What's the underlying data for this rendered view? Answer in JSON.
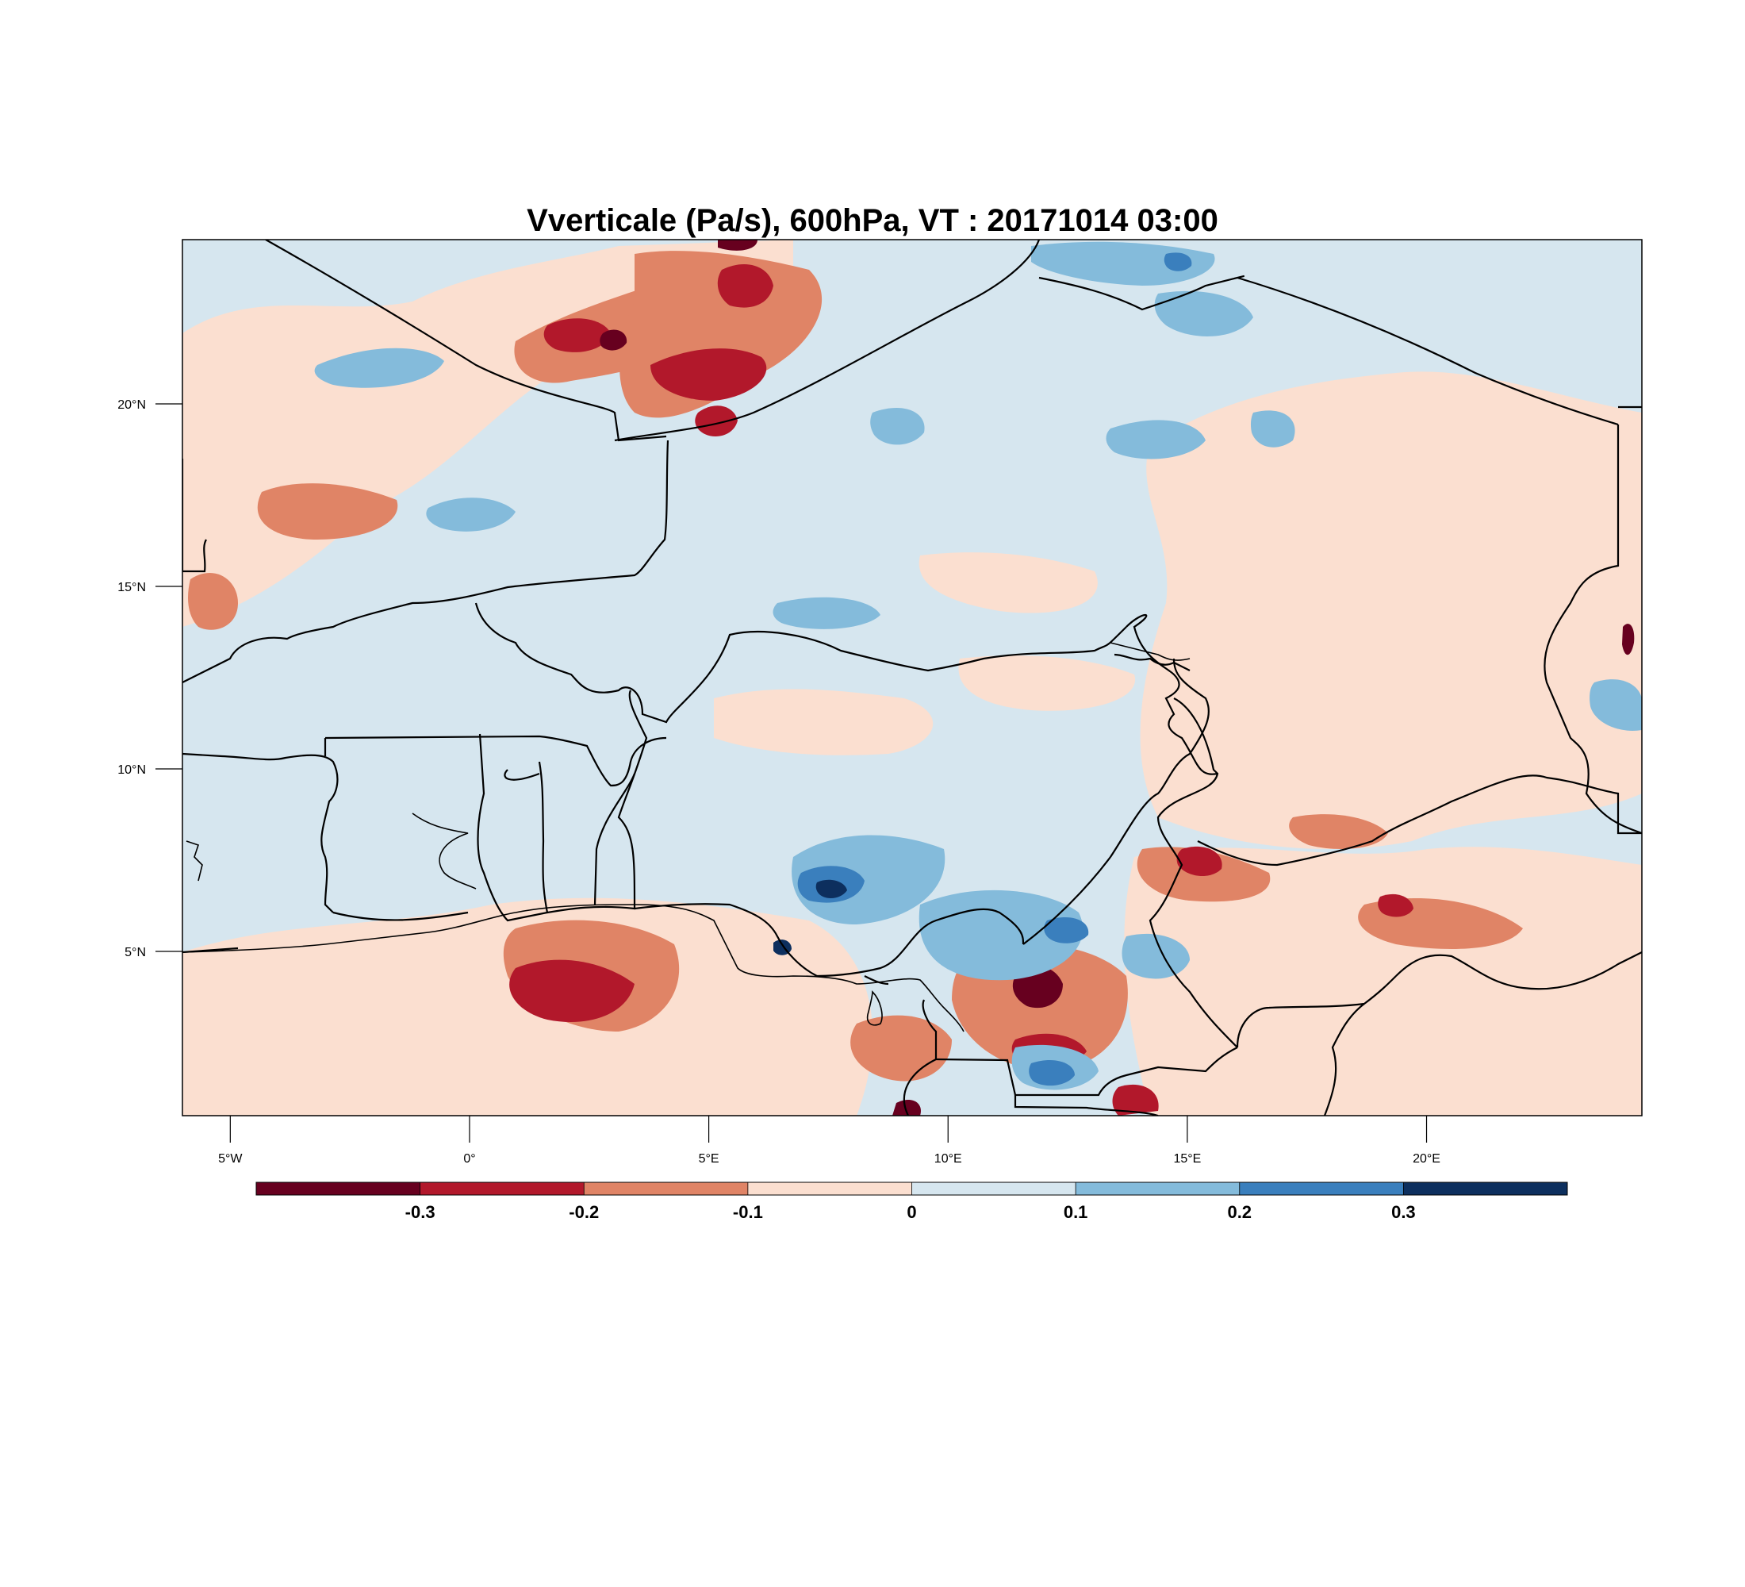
{
  "title": "Vverticale (Pa/s), 600hPa, VT : 20171014  03:00",
  "map": {
    "lon_range": [
      -6.0,
      24.5
    ],
    "lat_range": [
      0.5,
      24.5
    ],
    "lon_ticks": [
      {
        "value": -5,
        "label": "5°W"
      },
      {
        "value": 0,
        "label": "0°"
      },
      {
        "value": 5,
        "label": "5°E"
      },
      {
        "value": 10,
        "label": "10°E"
      },
      {
        "value": 15,
        "label": "15°E"
      },
      {
        "value": 20,
        "label": "20°E"
      }
    ],
    "lat_ticks": [
      {
        "value": 20,
        "label": "20°N"
      },
      {
        "value": 15,
        "label": "15°N"
      },
      {
        "value": 10,
        "label": "10°N"
      },
      {
        "value": 5,
        "label": "5°N"
      }
    ],
    "background_field_color": "#dbe9f2",
    "border_color": "#000000"
  },
  "colorbar": {
    "colors": [
      "#67001f",
      "#b2182b",
      "#d6604d",
      "#f4a582",
      "#fddbc7",
      "#d1e5f0",
      "#92c5de",
      "#4393c3",
      "#2166ac",
      "#053061"
    ],
    "boundaries": [
      -0.3,
      -0.2,
      -0.1,
      0,
      0.1,
      0.2,
      0.3
    ],
    "labels": [
      "-0.3",
      "-0.2",
      "-0.1",
      "0",
      "0.1",
      "0.2",
      "0.3"
    ],
    "levels": [
      {
        "range": [
          -0.4,
          -0.3
        ],
        "color": "#67001f"
      },
      {
        "range": [
          -0.3,
          -0.2
        ],
        "color": "#b2182b"
      },
      {
        "range": [
          -0.2,
          -0.1
        ],
        "color": "#e08466"
      },
      {
        "range": [
          -0.1,
          0.0
        ],
        "color": "#fbdfd0"
      },
      {
        "range": [
          0.0,
          0.1
        ],
        "color": "#d6e6ef"
      },
      {
        "range": [
          0.1,
          0.2
        ],
        "color": "#84bbdb"
      },
      {
        "range": [
          0.2,
          0.3
        ],
        "color": "#3a7fbd"
      },
      {
        "range": [
          0.3,
          0.4
        ],
        "color": "#0d2f5e"
      }
    ]
  }
}
